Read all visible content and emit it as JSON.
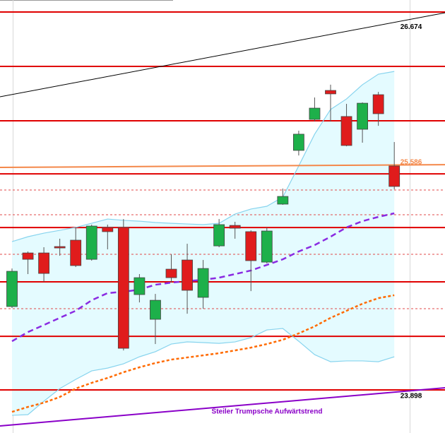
{
  "chart_data": {
    "type": "candlestick",
    "ylim": [
      23.573,
      26.829
    ],
    "up_color": "#1db04a",
    "down_color": "#e01c1c",
    "candles": {
      "open": [
        24.524,
        24.927,
        24.927,
        24.975,
        25.023,
        24.879,
        25.119,
        25.119,
        24.614,
        24.428,
        24.805,
        24.874,
        24.593,
        24.98,
        25.134,
        25.087,
        24.858,
        25.294,
        25.698,
        25.931,
        26.149,
        25.953,
        25.857,
        26.117,
        25.581
      ],
      "high": [
        24.81,
        24.938,
        24.97,
        25.034,
        25.119,
        25.14,
        25.14,
        25.182,
        24.768,
        24.619,
        24.917,
        24.996,
        24.874,
        25.182,
        25.161,
        25.097,
        25.119,
        25.411,
        25.846,
        26.096,
        26.192,
        26.048,
        26.059,
        26.138,
        25.761
      ],
      "low": [
        24.513,
        24.768,
        24.71,
        24.906,
        24.821,
        24.869,
        24.954,
        24.194,
        24.555,
        24.242,
        24.704,
        24.47,
        24.508,
        24.97,
        25.034,
        24.64,
        24.848,
        25.289,
        25.66,
        25.915,
        25.915,
        25.729,
        25.756,
        25.883,
        25.405
      ],
      "close": [
        24.789,
        24.879,
        24.773,
        24.97,
        24.832,
        25.129,
        25.087,
        24.21,
        24.741,
        24.571,
        24.741,
        24.646,
        24.81,
        25.14,
        25.113,
        24.869,
        25.092,
        25.352,
        25.82,
        26.016,
        26.123,
        25.735,
        26.053,
        25.974,
        25.427
      ]
    },
    "bands": {
      "color": "#88d4ee",
      "fill": "#e4fbff",
      "upper": [
        25.012,
        25.049,
        25.076,
        25.097,
        25.119,
        25.15,
        25.182,
        25.172,
        25.166,
        25.156,
        25.15,
        25.145,
        25.14,
        25.15,
        25.219,
        25.257,
        25.278,
        25.347,
        25.581,
        25.82,
        26.006,
        26.085,
        26.192,
        26.271,
        26.292
      ],
      "lower": [
        23.706,
        23.711,
        23.812,
        23.907,
        23.976,
        24.04,
        24.061,
        24.093,
        24.146,
        24.184,
        24.242,
        24.258,
        24.253,
        24.247,
        24.258,
        24.29,
        24.348,
        24.359,
        24.263,
        24.162,
        24.109,
        24.115,
        24.115,
        24.109,
        24.146
      ]
    },
    "series": [
      {
        "color": "#8a2be2",
        "style": "dashed",
        "values": [
          24.263,
          24.332,
          24.385,
          24.439,
          24.492,
          24.571,
          24.625,
          24.635,
          24.651,
          24.688,
          24.704,
          24.715,
          24.725,
          24.741,
          24.768,
          24.795,
          24.837,
          24.879,
          24.938,
          24.986,
          25.049,
          25.119,
          25.166,
          25.198,
          25.225
        ]
      },
      {
        "color": "#ff6a00",
        "style": "dotted",
        "values": [
          23.732,
          23.769,
          23.801,
          23.844,
          23.907,
          23.95,
          23.987,
          24.03,
          24.067,
          24.099,
          24.125,
          24.141,
          24.157,
          24.173,
          24.194,
          24.215,
          24.242,
          24.274,
          24.322,
          24.375,
          24.439,
          24.492,
          24.545,
          24.587,
          24.609
        ]
      }
    ],
    "levels": {
      "color": "#e00000",
      "values": [
        26.739,
        26.33,
        25.921,
        25.522,
        25.118,
        24.71,
        24.3,
        23.897
      ]
    },
    "minor_levels": {
      "color": "#e04848",
      "values": [
        25.4,
        25.214,
        24.917,
        24.508
      ]
    },
    "trendlines": [
      {
        "color": "#000000",
        "values": [
          26.101,
          26.733
        ],
        "label": {
          "value": 26.674,
          "label": "26.674"
        },
        "label_color": "#000000"
      },
      {
        "color": "#f4884a",
        "values": [
          25.57,
          25.591
        ],
        "label": {
          "value": 25.586,
          "label": "25.586"
        },
        "label_color": "#f4884a"
      },
      {
        "color": "#8a00c8",
        "values": [
          23.626,
          23.913
        ],
        "label": {
          "value": 23.898,
          "label": "23.898"
        },
        "label_color": "#000000"
      }
    ],
    "annotation": {
      "text": "Steiler Trumpsche Aufwärtstrend",
      "color": "#8a00c8"
    }
  }
}
